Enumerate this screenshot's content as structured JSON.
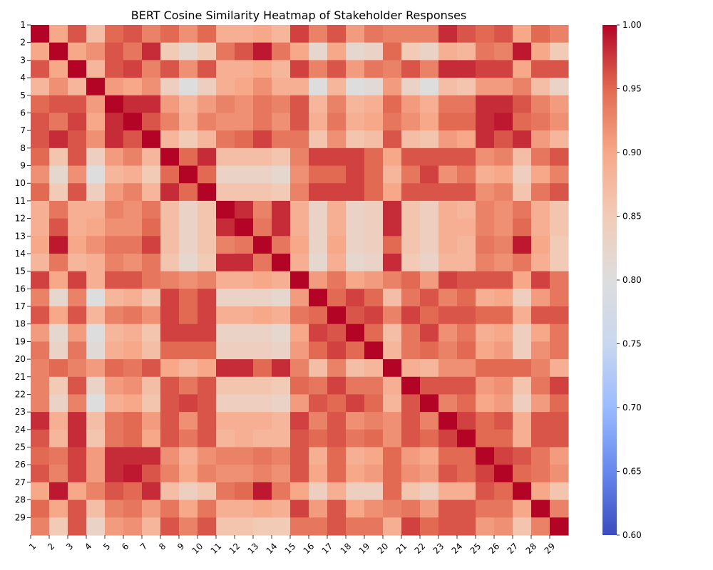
{
  "chart_data": {
    "type": "heatmap",
    "title": "BERT Cosine Similarity Heatmap of Stakeholder Responses",
    "row_labels": [
      "1",
      "2",
      "3",
      "4",
      "5",
      "6",
      "7",
      "8",
      "9",
      "10",
      "11",
      "12",
      "13",
      "14",
      "15",
      "16",
      "17",
      "18",
      "19",
      "20",
      "21",
      "22",
      "23",
      "24",
      "25",
      "26",
      "27",
      "28",
      "29"
    ],
    "col_labels": [
      "1",
      "2",
      "3",
      "4",
      "5",
      "6",
      "7",
      "8",
      "9",
      "10",
      "11",
      "12",
      "13",
      "14",
      "15",
      "16",
      "17",
      "18",
      "19",
      "20",
      "21",
      "22",
      "23",
      "24",
      "25",
      "26",
      "27",
      "28",
      "29"
    ],
    "matrix": [
      [
        1.0,
        0.9,
        0.96,
        0.87,
        0.95,
        0.96,
        0.93,
        0.95,
        0.92,
        0.95,
        0.89,
        0.89,
        0.9,
        0.88,
        0.97,
        0.93,
        0.96,
        0.91,
        0.94,
        0.93,
        0.93,
        0.93,
        0.98,
        0.96,
        0.95,
        0.96,
        0.9,
        0.95,
        0.93
      ],
      [
        0.9,
        1.0,
        0.9,
        0.92,
        0.96,
        0.94,
        0.98,
        0.85,
        0.82,
        0.85,
        0.94,
        0.96,
        0.99,
        0.94,
        0.9,
        0.82,
        0.9,
        0.82,
        0.83,
        0.95,
        0.85,
        0.83,
        0.89,
        0.88,
        0.94,
        0.93,
        0.99,
        0.9,
        0.85
      ],
      [
        0.96,
        0.9,
        1.0,
        0.88,
        0.96,
        0.97,
        0.93,
        0.96,
        0.92,
        0.96,
        0.89,
        0.89,
        0.9,
        0.88,
        0.97,
        0.93,
        0.96,
        0.91,
        0.94,
        0.93,
        0.96,
        0.93,
        0.98,
        0.98,
        0.97,
        0.97,
        0.9,
        0.96,
        0.96
      ],
      [
        0.88,
        0.92,
        0.88,
        1.0,
        0.91,
        0.9,
        0.92,
        0.84,
        0.8,
        0.84,
        0.89,
        0.9,
        0.92,
        0.89,
        0.89,
        0.8,
        0.88,
        0.8,
        0.81,
        0.91,
        0.83,
        0.8,
        0.87,
        0.86,
        0.91,
        0.91,
        0.93,
        0.87,
        0.83
      ],
      [
        0.95,
        0.96,
        0.96,
        0.91,
        1.0,
        0.98,
        0.98,
        0.91,
        0.88,
        0.91,
        0.93,
        0.92,
        0.94,
        0.93,
        0.96,
        0.88,
        0.93,
        0.88,
        0.89,
        0.95,
        0.91,
        0.89,
        0.94,
        0.94,
        0.98,
        0.98,
        0.96,
        0.93,
        0.91
      ],
      [
        0.96,
        0.94,
        0.97,
        0.9,
        0.98,
        1.0,
        0.96,
        0.93,
        0.89,
        0.93,
        0.92,
        0.92,
        0.94,
        0.92,
        0.96,
        0.89,
        0.94,
        0.89,
        0.9,
        0.94,
        0.92,
        0.9,
        0.95,
        0.95,
        0.98,
        0.99,
        0.95,
        0.94,
        0.92
      ],
      [
        0.96,
        0.98,
        0.96,
        0.92,
        0.98,
        0.96,
        1.0,
        0.88,
        0.85,
        0.88,
        0.94,
        0.95,
        0.97,
        0.94,
        0.94,
        0.86,
        0.92,
        0.86,
        0.87,
        0.96,
        0.87,
        0.86,
        0.91,
        0.9,
        0.98,
        0.96,
        0.98,
        0.91,
        0.88
      ],
      [
        0.95,
        0.86,
        0.96,
        0.84,
        0.91,
        0.93,
        0.88,
        1.0,
        0.95,
        0.98,
        0.87,
        0.87,
        0.87,
        0.86,
        0.93,
        0.97,
        0.97,
        0.97,
        0.95,
        0.9,
        0.96,
        0.96,
        0.96,
        0.96,
        0.92,
        0.93,
        0.87,
        0.94,
        0.96
      ],
      [
        0.92,
        0.82,
        0.92,
        0.8,
        0.88,
        0.89,
        0.85,
        0.95,
        1.0,
        0.95,
        0.83,
        0.83,
        0.83,
        0.82,
        0.92,
        0.95,
        0.95,
        0.97,
        0.95,
        0.88,
        0.94,
        0.97,
        0.92,
        0.94,
        0.89,
        0.9,
        0.84,
        0.9,
        0.93
      ],
      [
        0.95,
        0.85,
        0.96,
        0.84,
        0.91,
        0.93,
        0.88,
        0.98,
        0.95,
        1.0,
        0.86,
        0.86,
        0.86,
        0.85,
        0.93,
        0.97,
        0.97,
        0.97,
        0.95,
        0.9,
        0.96,
        0.96,
        0.96,
        0.96,
        0.92,
        0.93,
        0.86,
        0.94,
        0.96
      ],
      [
        0.89,
        0.94,
        0.89,
        0.89,
        0.93,
        0.92,
        0.94,
        0.87,
        0.83,
        0.86,
        1.0,
        0.98,
        0.93,
        0.98,
        0.89,
        0.83,
        0.89,
        0.83,
        0.84,
        0.98,
        0.86,
        0.84,
        0.89,
        0.88,
        0.93,
        0.92,
        0.94,
        0.89,
        0.86
      ],
      [
        0.89,
        0.96,
        0.89,
        0.9,
        0.92,
        0.92,
        0.95,
        0.87,
        0.83,
        0.86,
        0.98,
        1.0,
        0.94,
        0.98,
        0.89,
        0.83,
        0.89,
        0.83,
        0.84,
        0.98,
        0.86,
        0.84,
        0.89,
        0.89,
        0.93,
        0.92,
        0.95,
        0.89,
        0.86
      ],
      [
        0.9,
        0.99,
        0.9,
        0.92,
        0.94,
        0.94,
        0.97,
        0.87,
        0.83,
        0.86,
        0.93,
        0.94,
        1.0,
        0.94,
        0.9,
        0.83,
        0.9,
        0.83,
        0.84,
        0.95,
        0.86,
        0.84,
        0.89,
        0.88,
        0.94,
        0.93,
        0.99,
        0.9,
        0.85
      ],
      [
        0.88,
        0.94,
        0.88,
        0.89,
        0.93,
        0.92,
        0.94,
        0.86,
        0.82,
        0.85,
        0.98,
        0.98,
        0.94,
        1.0,
        0.89,
        0.82,
        0.89,
        0.82,
        0.83,
        0.98,
        0.85,
        0.83,
        0.88,
        0.88,
        0.93,
        0.92,
        0.94,
        0.89,
        0.85
      ],
      [
        0.97,
        0.9,
        0.97,
        0.89,
        0.96,
        0.96,
        0.94,
        0.93,
        0.92,
        0.93,
        0.89,
        0.89,
        0.9,
        0.89,
        1.0,
        0.91,
        0.94,
        0.9,
        0.91,
        0.93,
        0.95,
        0.91,
        0.97,
        0.96,
        0.96,
        0.96,
        0.9,
        0.97,
        0.94
      ],
      [
        0.93,
        0.82,
        0.93,
        0.8,
        0.88,
        0.89,
        0.86,
        0.97,
        0.95,
        0.97,
        0.83,
        0.83,
        0.83,
        0.82,
        0.91,
        1.0,
        0.95,
        0.97,
        0.95,
        0.87,
        0.94,
        0.96,
        0.93,
        0.95,
        0.89,
        0.9,
        0.84,
        0.91,
        0.94
      ],
      [
        0.96,
        0.9,
        0.96,
        0.88,
        0.93,
        0.94,
        0.92,
        0.97,
        0.95,
        0.97,
        0.89,
        0.89,
        0.9,
        0.89,
        0.94,
        0.95,
        1.0,
        0.96,
        0.97,
        0.93,
        0.97,
        0.95,
        0.96,
        0.96,
        0.95,
        0.95,
        0.89,
        0.96,
        0.96
      ],
      [
        0.91,
        0.82,
        0.91,
        0.8,
        0.88,
        0.89,
        0.86,
        0.97,
        0.97,
        0.97,
        0.83,
        0.83,
        0.83,
        0.82,
        0.9,
        0.97,
        0.96,
        1.0,
        0.95,
        0.87,
        0.94,
        0.97,
        0.92,
        0.94,
        0.89,
        0.9,
        0.84,
        0.9,
        0.94
      ],
      [
        0.94,
        0.83,
        0.94,
        0.81,
        0.89,
        0.9,
        0.87,
        0.95,
        0.95,
        0.95,
        0.84,
        0.84,
        0.84,
        0.83,
        0.91,
        0.95,
        0.97,
        0.95,
        1.0,
        0.88,
        0.94,
        0.95,
        0.93,
        0.95,
        0.9,
        0.91,
        0.84,
        0.92,
        0.94
      ],
      [
        0.93,
        0.95,
        0.93,
        0.91,
        0.95,
        0.94,
        0.96,
        0.9,
        0.88,
        0.9,
        0.98,
        0.98,
        0.95,
        0.98,
        0.93,
        0.87,
        0.93,
        0.87,
        0.88,
        1.0,
        0.89,
        0.88,
        0.92,
        0.92,
        0.95,
        0.95,
        0.95,
        0.93,
        0.89
      ],
      [
        0.93,
        0.85,
        0.96,
        0.83,
        0.91,
        0.92,
        0.87,
        0.96,
        0.94,
        0.96,
        0.86,
        0.86,
        0.86,
        0.85,
        0.95,
        0.94,
        0.97,
        0.94,
        0.94,
        0.89,
        1.0,
        0.96,
        0.96,
        0.96,
        0.91,
        0.92,
        0.86,
        0.94,
        0.97
      ],
      [
        0.93,
        0.83,
        0.93,
        0.8,
        0.89,
        0.9,
        0.86,
        0.96,
        0.97,
        0.96,
        0.84,
        0.84,
        0.84,
        0.83,
        0.91,
        0.96,
        0.95,
        0.97,
        0.95,
        0.88,
        0.96,
        1.0,
        0.93,
        0.95,
        0.9,
        0.91,
        0.84,
        0.91,
        0.95
      ],
      [
        0.98,
        0.89,
        0.98,
        0.87,
        0.94,
        0.95,
        0.91,
        0.96,
        0.92,
        0.96,
        0.89,
        0.89,
        0.89,
        0.88,
        0.97,
        0.93,
        0.96,
        0.92,
        0.93,
        0.92,
        0.96,
        0.93,
        1.0,
        0.97,
        0.95,
        0.96,
        0.89,
        0.96,
        0.96
      ],
      [
        0.96,
        0.88,
        0.98,
        0.86,
        0.94,
        0.95,
        0.9,
        0.96,
        0.94,
        0.96,
        0.88,
        0.89,
        0.88,
        0.88,
        0.96,
        0.95,
        0.96,
        0.94,
        0.95,
        0.92,
        0.96,
        0.95,
        0.97,
        1.0,
        0.95,
        0.95,
        0.89,
        0.96,
        0.96
      ],
      [
        0.95,
        0.94,
        0.97,
        0.91,
        0.98,
        0.98,
        0.98,
        0.92,
        0.89,
        0.92,
        0.93,
        0.93,
        0.94,
        0.93,
        0.96,
        0.89,
        0.95,
        0.89,
        0.9,
        0.95,
        0.91,
        0.9,
        0.95,
        0.95,
        1.0,
        0.97,
        0.96,
        0.94,
        0.91
      ],
      [
        0.96,
        0.93,
        0.97,
        0.91,
        0.98,
        0.99,
        0.96,
        0.93,
        0.9,
        0.93,
        0.92,
        0.92,
        0.93,
        0.92,
        0.96,
        0.9,
        0.95,
        0.9,
        0.91,
        0.95,
        0.92,
        0.91,
        0.96,
        0.95,
        0.97,
        1.0,
        0.95,
        0.94,
        0.92
      ],
      [
        0.9,
        0.99,
        0.9,
        0.93,
        0.96,
        0.95,
        0.98,
        0.87,
        0.84,
        0.86,
        0.94,
        0.95,
        0.99,
        0.94,
        0.9,
        0.84,
        0.89,
        0.84,
        0.84,
        0.95,
        0.86,
        0.84,
        0.89,
        0.89,
        0.96,
        0.95,
        1.0,
        0.9,
        0.86
      ],
      [
        0.95,
        0.9,
        0.96,
        0.87,
        0.93,
        0.94,
        0.91,
        0.94,
        0.9,
        0.94,
        0.89,
        0.89,
        0.9,
        0.89,
        0.97,
        0.91,
        0.96,
        0.9,
        0.92,
        0.93,
        0.94,
        0.91,
        0.96,
        0.96,
        0.94,
        0.94,
        0.9,
        1.0,
        0.93
      ],
      [
        0.93,
        0.85,
        0.96,
        0.83,
        0.91,
        0.92,
        0.88,
        0.96,
        0.93,
        0.96,
        0.86,
        0.86,
        0.85,
        0.85,
        0.94,
        0.94,
        0.96,
        0.94,
        0.94,
        0.89,
        0.97,
        0.95,
        0.96,
        0.96,
        0.91,
        0.92,
        0.86,
        0.93,
        1.0
      ]
    ],
    "colorbar": {
      "min": 0.6,
      "max": 1.0,
      "ticks": [
        "0.60",
        "0.65",
        "0.70",
        "0.75",
        "0.80",
        "0.85",
        "0.90",
        "0.95",
        "1.00"
      ],
      "colormap": "coolwarm"
    },
    "colormap_stops": [
      "#3b4cc0",
      "#6788ee",
      "#9abbff",
      "#c9d7f0",
      "#dddddd",
      "#f2cbb7",
      "#f7a889",
      "#e26952",
      "#b40426"
    ]
  }
}
